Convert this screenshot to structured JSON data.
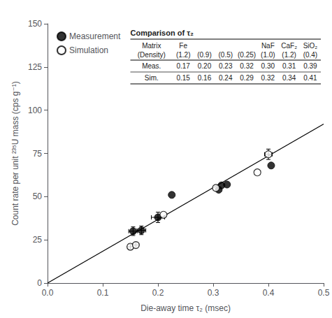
{
  "chart_data": {
    "type": "scatter",
    "xlabel": "Die-away time τ₂ (msec)",
    "ylabel": "Count rate per unit ²³⁵U mass (cps g⁻¹)",
    "xlim": [
      0,
      0.5
    ],
    "ylim": [
      0,
      150
    ],
    "xticks": [
      {
        "value": 0,
        "label": "0.0"
      },
      0.1,
      0.2,
      0.3,
      0.4,
      0.5
    ],
    "yticks": [
      0,
      25,
      50,
      75,
      100,
      125,
      150
    ],
    "grid": false,
    "legend": "upper left",
    "series": [
      {
        "type": "line",
        "color": "black",
        "x": [
          0.0,
          0.5
        ],
        "values": [
          0.0,
          92.0
        ]
      },
      {
        "name": "Measurement",
        "type": "scatter",
        "marker": "circle",
        "color": "black",
        "x": [
          0.155,
          0.17,
          0.2,
          0.225,
          0.31,
          0.315,
          0.325,
          0.405
        ],
        "values": [
          30.0,
          30.5,
          38.0,
          51.0,
          54.0,
          56.5,
          57.0,
          68.0
        ],
        "xerr": [
          0.008,
          0.008,
          0.012,
          0.0,
          0.0,
          0.0,
          0.0,
          0.0
        ],
        "yerr": [
          2.5,
          2.5,
          3.0,
          0.0,
          0.0,
          0.0,
          0.0,
          0.0
        ]
      },
      {
        "name": "Simulation",
        "type": "scatter",
        "marker": "circle_open",
        "color": "black",
        "x": [
          0.15,
          0.16,
          0.21,
          0.305,
          0.38,
          0.4
        ],
        "values": [
          21.0,
          22.0,
          39.5,
          55.0,
          64.0,
          74.5
        ],
        "xerr": [
          0.005,
          0.005,
          0.0,
          0.0,
          0.0,
          0.007
        ],
        "yerr": [
          1.5,
          1.5,
          0.0,
          0.0,
          0.0,
          3.0
        ]
      }
    ],
    "table": {
      "title": "Comparison of τ₂",
      "columns": [
        [
          "Matrix",
          "(Density)"
        ],
        [
          "Fe",
          "(1.2)"
        ],
        [
          "(0.9)"
        ],
        [
          "(0.5)"
        ],
        [
          "(0.25)"
        ],
        [
          "NaF",
          "(1.0)"
        ],
        [
          "CaF₂",
          "(1.2)"
        ],
        [
          "SiO₂",
          "(0.4)"
        ]
      ],
      "rows": [
        [
          "Meas.",
          "0.17",
          "0.20",
          "0.23",
          "0.32",
          "0.30",
          "0.31",
          "0.39"
        ],
        [
          "Sim.",
          "0.15",
          "0.16",
          "0.24",
          "0.29",
          "0.32",
          "0.34",
          "0.41"
        ]
      ]
    }
  }
}
